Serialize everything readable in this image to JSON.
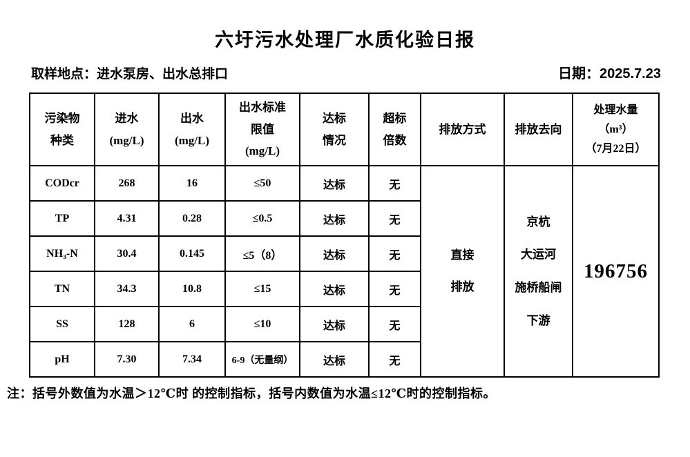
{
  "page": {
    "title": "六圩污水处理厂水质化验日报",
    "sampling_location": "取样地点：进水泵房、出水总排口",
    "date": "日期：2025.7.23",
    "footnote": "注：括号外数值为水温＞12℃时 的控制指标，括号内数值为水温≤12℃时的控制指标。"
  },
  "table": {
    "headers": [
      "污染物\n种类",
      "进水\n(mg/L)",
      "出水\n(mg/L)",
      "出水标准\n限值\n(mg/L)",
      "达标\n情况",
      "超标\n倍数",
      "排放方式",
      "排放去向",
      "处理水量\n（m³）\n（7月22日）"
    ],
    "rows": [
      {
        "pollutant": "CODcr",
        "influent": "268",
        "effluent": "16",
        "limit": "≤50",
        "status": "达标",
        "exceed": "无"
      },
      {
        "pollutant": "TP",
        "influent": "4.31",
        "effluent": "0.28",
        "limit": "≤0.5",
        "status": "达标",
        "exceed": "无"
      },
      {
        "pollutant": "NH₃-N",
        "influent": "30.4",
        "effluent": "0.145",
        "limit": "≤5（8）",
        "status": "达标",
        "exceed": "无"
      },
      {
        "pollutant": "TN",
        "influent": "34.3",
        "effluent": "10.8",
        "limit": "≤15",
        "status": "达标",
        "exceed": "无"
      },
      {
        "pollutant": "SS",
        "influent": "128",
        "effluent": "6",
        "limit": "≤10",
        "status": "达标",
        "exceed": "无"
      },
      {
        "pollutant": "pH",
        "influent": "7.30",
        "effluent": "7.34",
        "limit": "6-9（无量纲）",
        "status": "达标",
        "exceed": "无"
      }
    ],
    "merged": {
      "discharge_method": "直接\n排放",
      "discharge_destination": "京杭\n大运河\n施桥船闸\n下游",
      "treated_volume": "196756"
    }
  }
}
